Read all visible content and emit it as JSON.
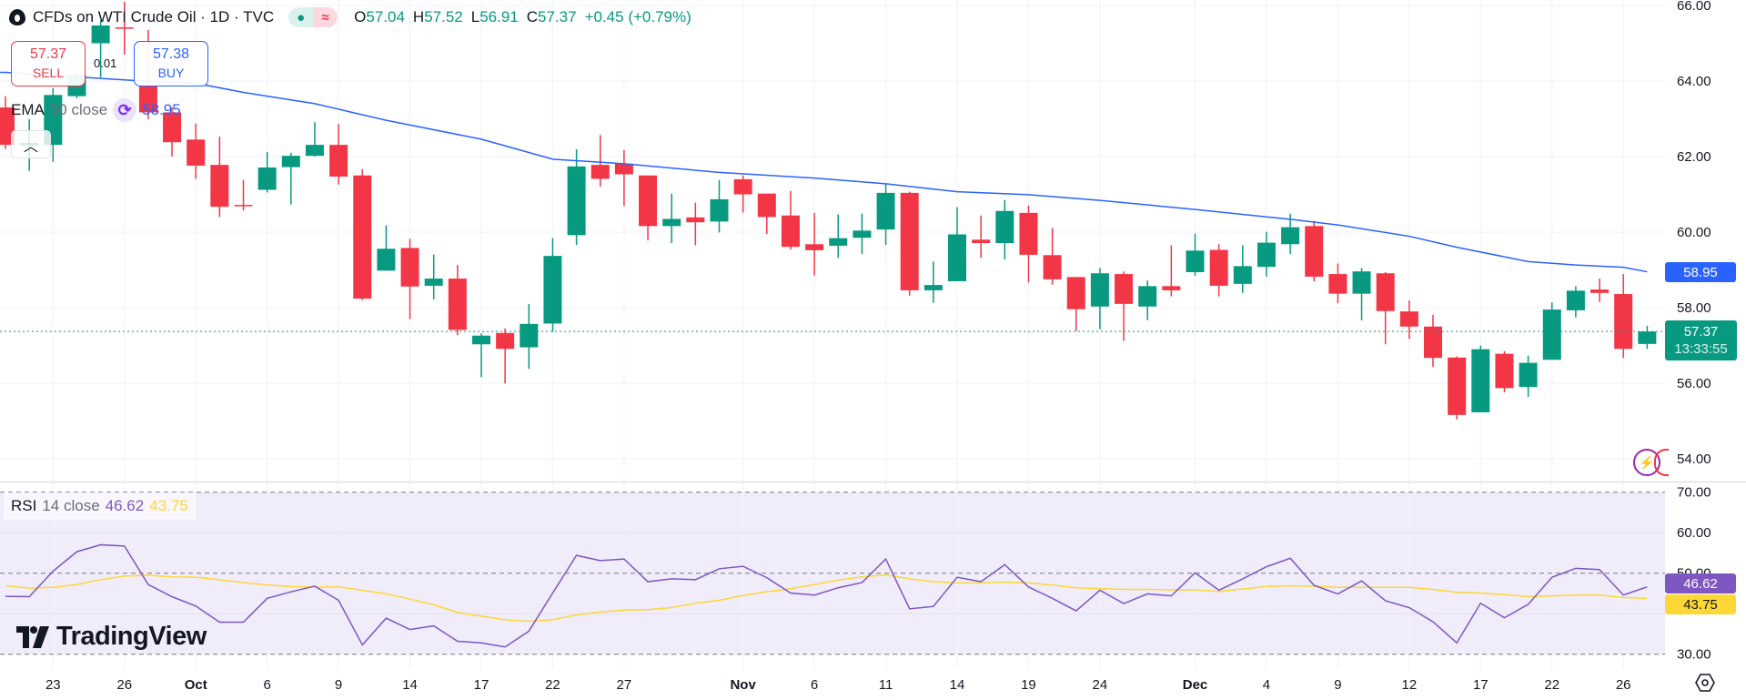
{
  "header": {
    "symbol_title": "CFDs on WTI Crude Oil · 1D · TVC",
    "status_market": "●",
    "status_delayed": "≈",
    "ohlc": {
      "o_label": "O",
      "o": "57.04",
      "h_label": "H",
      "h": "57.52",
      "l_label": "L",
      "l": "56.91",
      "c_label": "C",
      "c": "57.37",
      "change": "+0.45 (+0.79%)"
    }
  },
  "trade": {
    "sell_price": "57.37",
    "sell_label": "SELL",
    "spread": "0.01",
    "buy_price": "57.38",
    "buy_label": "BUY"
  },
  "ema_legend": {
    "name": "EMA",
    "params": "50 close",
    "value": "58.95",
    "icon": "refresh-icon"
  },
  "rsi_legend": {
    "name": "RSI",
    "params": "14 close",
    "value": "46.62",
    "ma_value": "43.75"
  },
  "logo": {
    "text": "TradingView"
  },
  "price_axis": {
    "ticks": [
      "66.00",
      "64.00",
      "62.00",
      "60.00",
      "58.00",
      "56.00",
      "54.00"
    ],
    "ema_label": "58.95",
    "last_price": "57.37",
    "countdown": "13:33:55"
  },
  "rsi_axis": {
    "ticks": [
      "70.00",
      "60.00",
      "50.00",
      "30.00"
    ],
    "rsi_label": "46.62",
    "ma_label": "43.75"
  },
  "x_axis": {
    "ticks": [
      {
        "label": "23",
        "date": "Sep 23",
        "month": false
      },
      {
        "label": "26",
        "date": "Sep 26",
        "month": false
      },
      {
        "label": "Oct",
        "date": "Oct 1",
        "month": true
      },
      {
        "label": "6",
        "date": "Oct 6",
        "month": false
      },
      {
        "label": "9",
        "date": "Oct 9",
        "month": false
      },
      {
        "label": "14",
        "date": "Oct 14",
        "month": false
      },
      {
        "label": "17",
        "date": "Oct 17",
        "month": false
      },
      {
        "label": "22",
        "date": "Oct 22",
        "month": false
      },
      {
        "label": "27",
        "date": "Oct 27",
        "month": false
      },
      {
        "label": "Nov",
        "date": "Nov 3",
        "month": true
      },
      {
        "label": "6",
        "date": "Nov 6",
        "month": false
      },
      {
        "label": "11",
        "date": "Nov 11",
        "month": false
      },
      {
        "label": "14",
        "date": "Nov 14",
        "month": false
      },
      {
        "label": "19",
        "date": "Nov 19",
        "month": false
      },
      {
        "label": "24",
        "date": "Nov 24",
        "month": false
      },
      {
        "label": "Dec",
        "date": "Dec 1",
        "month": true
      },
      {
        "label": "4",
        "date": "Dec 4",
        "month": false
      },
      {
        "label": "9",
        "date": "Dec 9",
        "month": false
      },
      {
        "label": "12",
        "date": "Dec 12",
        "month": false
      },
      {
        "label": "17",
        "date": "Dec 17",
        "month": false
      },
      {
        "label": "22",
        "date": "Dec 22",
        "month": false
      },
      {
        "label": "26",
        "date": "Dec 26",
        "month": false
      }
    ]
  },
  "colors": {
    "up": "#089981",
    "down": "#f23645",
    "ema": "#2962ff",
    "rsi": "#7e57c2",
    "rsi_ma": "#fdd835",
    "rsi_band": "#f0ecfa",
    "grid": "#f0f3fa"
  },
  "chart_data": {
    "type": "candlestick",
    "price_range": [
      53.5,
      66.0
    ],
    "rsi_range": [
      30,
      70
    ],
    "rsi_levels": [
      70,
      50,
      30
    ],
    "candles_fields": [
      "date",
      "open",
      "high",
      "low",
      "close"
    ],
    "candles": [
      [
        "Sep 19",
        63.3,
        63.6,
        62.2,
        62.31
      ],
      [
        "Sep 22",
        62.3,
        62.99,
        61.62,
        62.36
      ],
      [
        "Sep 23",
        62.31,
        63.82,
        61.86,
        63.63
      ],
      [
        "Sep 24",
        63.6,
        64.3,
        63.55,
        64.16
      ],
      [
        "Sep 25",
        65.0,
        65.6,
        64.1,
        65.47
      ],
      [
        "Sep 26",
        65.42,
        66.1,
        64.7,
        65.4
      ],
      [
        "Sep 29",
        63.87,
        65.35,
        62.99,
        63.17
      ],
      [
        "Sep 30",
        63.17,
        63.3,
        62.0,
        62.38
      ],
      [
        "Oct 1",
        62.45,
        62.87,
        61.41,
        61.76
      ],
      [
        "Oct 2",
        61.78,
        62.53,
        60.4,
        60.67
      ],
      [
        "Oct 3",
        60.72,
        61.38,
        60.57,
        60.7
      ],
      [
        "Oct 6",
        61.12,
        62.12,
        61.05,
        61.71
      ],
      [
        "Oct 7",
        61.72,
        62.1,
        60.73,
        62.02
      ],
      [
        "Oct 8",
        62.02,
        62.91,
        62.0,
        62.31
      ],
      [
        "Oct 9",
        62.31,
        62.86,
        61.26,
        61.47
      ],
      [
        "Oct 10",
        61.5,
        61.67,
        58.2,
        58.24
      ],
      [
        "Oct 13",
        58.98,
        60.18,
        58.98,
        59.56
      ],
      [
        "Oct 14",
        59.58,
        59.82,
        57.7,
        58.56
      ],
      [
        "Oct 15",
        58.58,
        59.41,
        58.22,
        58.77
      ],
      [
        "Oct 16",
        58.77,
        59.13,
        57.27,
        57.41
      ],
      [
        "Oct 17",
        57.03,
        57.32,
        56.16,
        57.26
      ],
      [
        "Oct 20",
        57.33,
        57.45,
        55.99,
        56.91
      ],
      [
        "Oct 21",
        56.95,
        58.1,
        56.38,
        57.57
      ],
      [
        "Oct 22",
        57.58,
        59.84,
        57.36,
        59.37
      ],
      [
        "Oct 23",
        59.92,
        62.19,
        59.66,
        61.74
      ],
      [
        "Oct 24",
        61.78,
        62.57,
        61.21,
        61.41
      ],
      [
        "Oct 27",
        61.81,
        62.17,
        60.69,
        61.53
      ],
      [
        "Oct 28",
        61.5,
        61.5,
        59.78,
        60.16
      ],
      [
        "Oct 29",
        60.16,
        61.02,
        59.71,
        60.35
      ],
      [
        "Oct 30",
        60.39,
        60.78,
        59.65,
        60.26
      ],
      [
        "Oct 31",
        60.28,
        61.38,
        59.99,
        60.87
      ],
      [
        "Nov 3",
        61.4,
        61.5,
        60.52,
        61.0
      ],
      [
        "Nov 4",
        61.02,
        61.02,
        59.95,
        60.4
      ],
      [
        "Nov 5",
        60.44,
        61.09,
        59.54,
        59.61
      ],
      [
        "Nov 6",
        59.68,
        60.51,
        58.85,
        59.52
      ],
      [
        "Nov 7",
        59.64,
        60.47,
        59.32,
        59.84
      ],
      [
        "Nov 10",
        59.85,
        60.49,
        59.42,
        60.04
      ],
      [
        "Nov 11",
        60.07,
        61.29,
        59.66,
        61.04
      ],
      [
        "Nov 12",
        61.04,
        61.07,
        58.32,
        58.46
      ],
      [
        "Nov 13",
        58.46,
        59.22,
        58.13,
        58.6
      ],
      [
        "Nov 14",
        58.7,
        60.66,
        58.7,
        59.94
      ],
      [
        "Nov 17",
        59.8,
        60.44,
        59.32,
        59.71
      ],
      [
        "Nov 18",
        59.71,
        60.85,
        59.28,
        60.56
      ],
      [
        "Nov 19",
        60.51,
        60.7,
        58.67,
        59.4
      ],
      [
        "Nov 20",
        59.39,
        60.11,
        58.61,
        58.75
      ],
      [
        "Nov 21",
        58.81,
        58.81,
        57.38,
        57.96
      ],
      [
        "Nov 24",
        58.03,
        59.05,
        57.43,
        58.91
      ],
      [
        "Nov 25",
        58.89,
        58.96,
        57.12,
        58.1
      ],
      [
        "Nov 26",
        58.03,
        58.72,
        57.67,
        58.57
      ],
      [
        "Nov 28",
        58.57,
        59.65,
        58.3,
        58.46
      ],
      [
        "Dec 1",
        58.94,
        59.96,
        58.84,
        59.51
      ],
      [
        "Dec 2",
        59.53,
        59.68,
        58.3,
        58.58
      ],
      [
        "Dec 3",
        58.63,
        59.65,
        58.39,
        59.1
      ],
      [
        "Dec 4",
        59.08,
        60.01,
        58.82,
        59.72
      ],
      [
        "Dec 5",
        59.68,
        60.49,
        59.42,
        60.13
      ],
      [
        "Dec 8",
        60.16,
        60.3,
        58.7,
        58.82
      ],
      [
        "Dec 9",
        58.89,
        59.17,
        58.12,
        58.37
      ],
      [
        "Dec 10",
        58.37,
        59.05,
        57.66,
        58.96
      ],
      [
        "Dec 11",
        58.91,
        58.94,
        57.03,
        57.91
      ],
      [
        "Dec 12",
        57.9,
        58.19,
        57.17,
        57.5
      ],
      [
        "Dec 15",
        57.5,
        57.81,
        56.43,
        56.67
      ],
      [
        "Dec 16",
        56.68,
        56.71,
        55.04,
        55.16
      ],
      [
        "Dec 17",
        55.23,
        57.0,
        55.23,
        56.9
      ],
      [
        "Dec 18",
        56.78,
        56.85,
        55.76,
        55.87
      ],
      [
        "Dec 19",
        55.9,
        56.73,
        55.64,
        56.54
      ],
      [
        "Dec 22",
        56.62,
        58.14,
        56.62,
        57.95
      ],
      [
        "Dec 23",
        57.93,
        58.57,
        57.74,
        58.45
      ],
      [
        "Dec 24",
        58.48,
        58.77,
        58.15,
        58.39
      ],
      [
        "Dec 26",
        58.36,
        58.89,
        56.67,
        56.91
      ],
      [
        "Dec 29",
        57.04,
        57.52,
        56.91,
        57.37
      ]
    ],
    "ema50": [
      [
        "Sep 19",
        64.23
      ],
      [
        "Sep 29",
        63.99
      ],
      [
        "Oct 1",
        63.94
      ],
      [
        "Oct 3",
        63.7
      ],
      [
        "Oct 8",
        63.4
      ],
      [
        "Oct 13",
        62.96
      ],
      [
        "Oct 17",
        62.46
      ],
      [
        "Oct 22",
        61.93
      ],
      [
        "Oct 27",
        61.81
      ],
      [
        "Oct 31",
        61.58
      ],
      [
        "Nov 6",
        61.43
      ],
      [
        "Nov 11",
        61.28
      ],
      [
        "Nov 14",
        61.07
      ],
      [
        "Nov 19",
        60.99
      ],
      [
        "Nov 24",
        60.84
      ],
      [
        "Dec 1",
        60.6
      ],
      [
        "Dec 5",
        60.34
      ],
      [
        "Dec 9",
        60.19
      ],
      [
        "Dec 12",
        59.89
      ],
      [
        "Dec 16",
        59.6
      ],
      [
        "Dec 19",
        59.22
      ],
      [
        "Dec 23",
        59.13
      ],
      [
        "Dec 26",
        59.07
      ],
      [
        "Dec 29",
        58.95
      ]
    ],
    "rsi14": [
      44.3,
      44.2,
      50.5,
      55.3,
      57.0,
      56.7,
      47.2,
      44.2,
      41.9,
      37.9,
      37.9,
      43.8,
      45.4,
      46.8,
      43.3,
      32.3,
      38.9,
      36.1,
      37.0,
      33.2,
      32.8,
      31.8,
      35.7,
      45.1,
      54.4,
      53.1,
      53.5,
      47.9,
      48.6,
      48.4,
      51.1,
      51.7,
      48.9,
      45.1,
      44.6,
      46.4,
      47.7,
      53.5,
      41.2,
      41.8,
      49.0,
      47.9,
      52.1,
      46.6,
      43.8,
      40.7,
      45.8,
      42.5,
      44.9,
      44.4,
      50.1,
      45.8,
      48.6,
      51.6,
      53.7,
      47.0,
      44.9,
      48.1,
      43.2,
      41.5,
      38.0,
      32.8,
      42.6,
      39.0,
      42.3,
      49.0,
      51.2,
      50.9,
      44.6,
      46.62
    ],
    "rsi_ma": [
      46.9,
      46.3,
      46.5,
      47.2,
      48.4,
      49.3,
      49.5,
      49.1,
      49.0,
      48.4,
      47.7,
      47.1,
      46.7,
      46.6,
      46.6,
      45.8,
      44.9,
      43.6,
      42.2,
      40.3,
      39.4,
      38.5,
      38.1,
      38.5,
      39.7,
      40.4,
      40.9,
      41.0,
      41.5,
      42.6,
      43.3,
      44.5,
      45.4,
      46.2,
      47.2,
      48.3,
      49.1,
      49.6,
      48.6,
      47.9,
      47.6,
      47.6,
      47.8,
      47.6,
      47.1,
      46.4,
      46.2,
      46.0,
      46.0,
      45.9,
      45.9,
      45.5,
      46.1,
      46.7,
      46.9,
      46.8,
      46.5,
      46.5,
      46.5,
      46.5,
      46.0,
      45.3,
      45.1,
      44.7,
      44.2,
      44.4,
      44.6,
      44.6,
      44.0,
      43.75
    ]
  }
}
